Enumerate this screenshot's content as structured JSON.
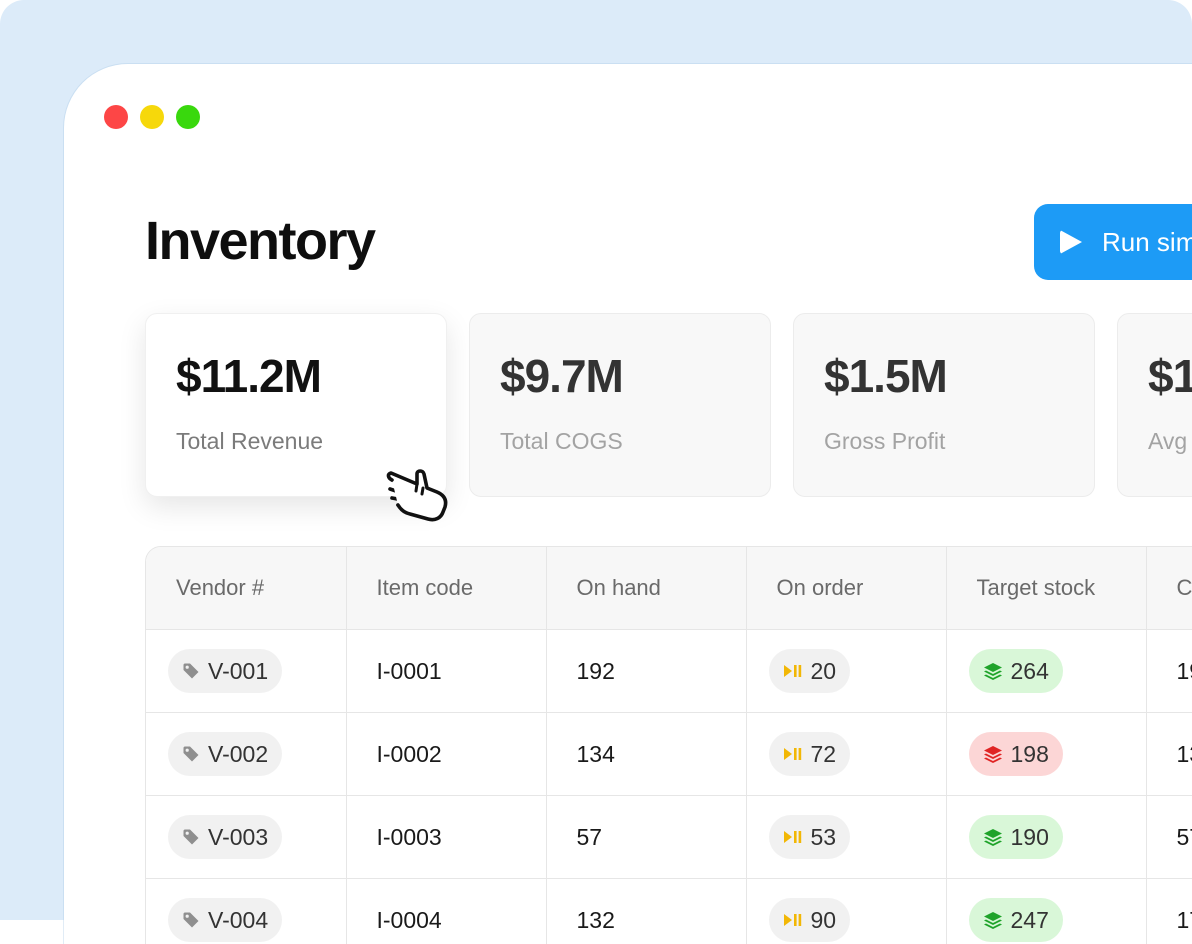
{
  "window": {
    "controls": [
      {
        "name": "close",
        "color": "#fd4646"
      },
      {
        "name": "minimize",
        "color": "#f6d80b"
      },
      {
        "name": "maximize",
        "color": "#39d80d"
      }
    ]
  },
  "header": {
    "title": "Inventory",
    "run_button_label": "Run sim"
  },
  "stats": [
    {
      "value": "$11.2M",
      "label": "Total Revenue"
    },
    {
      "value": "$9.7M",
      "label": "Total COGS"
    },
    {
      "value": "$1.5M",
      "label": "Gross Profit"
    },
    {
      "value": "$1",
      "label": "Avg"
    }
  ],
  "table": {
    "columns": [
      "Vendor #",
      "Item code",
      "On hand",
      "On order",
      "Target stock",
      "C"
    ],
    "rows": [
      {
        "vendor": "V-001",
        "item": "I-0001",
        "on_hand": "192",
        "on_order": "20",
        "target": "264",
        "target_status": "green",
        "next": "19"
      },
      {
        "vendor": "V-002",
        "item": "I-0002",
        "on_hand": "134",
        "on_order": "72",
        "target": "198",
        "target_status": "red",
        "next": "13"
      },
      {
        "vendor": "V-003",
        "item": "I-0003",
        "on_hand": "57",
        "on_order": "53",
        "target": "190",
        "target_status": "green",
        "next": "57"
      },
      {
        "vendor": "V-004",
        "item": "I-0004",
        "on_hand": "132",
        "on_order": "90",
        "target": "247",
        "target_status": "green",
        "next": "17"
      }
    ]
  },
  "icons": {
    "vendor_tag": "tag-icon",
    "on_order": "play-pause-icon",
    "target": "layers-icon",
    "cursor": "hand-pointer-icon"
  },
  "colors": {
    "accent": "#1d9bf6",
    "status_green_bg": "#d9f7d8",
    "status_green_fg": "#1fa32a",
    "status_red_bg": "#fcd6d6",
    "status_red_fg": "#e02424",
    "on_order_icon": "#f2b705"
  }
}
